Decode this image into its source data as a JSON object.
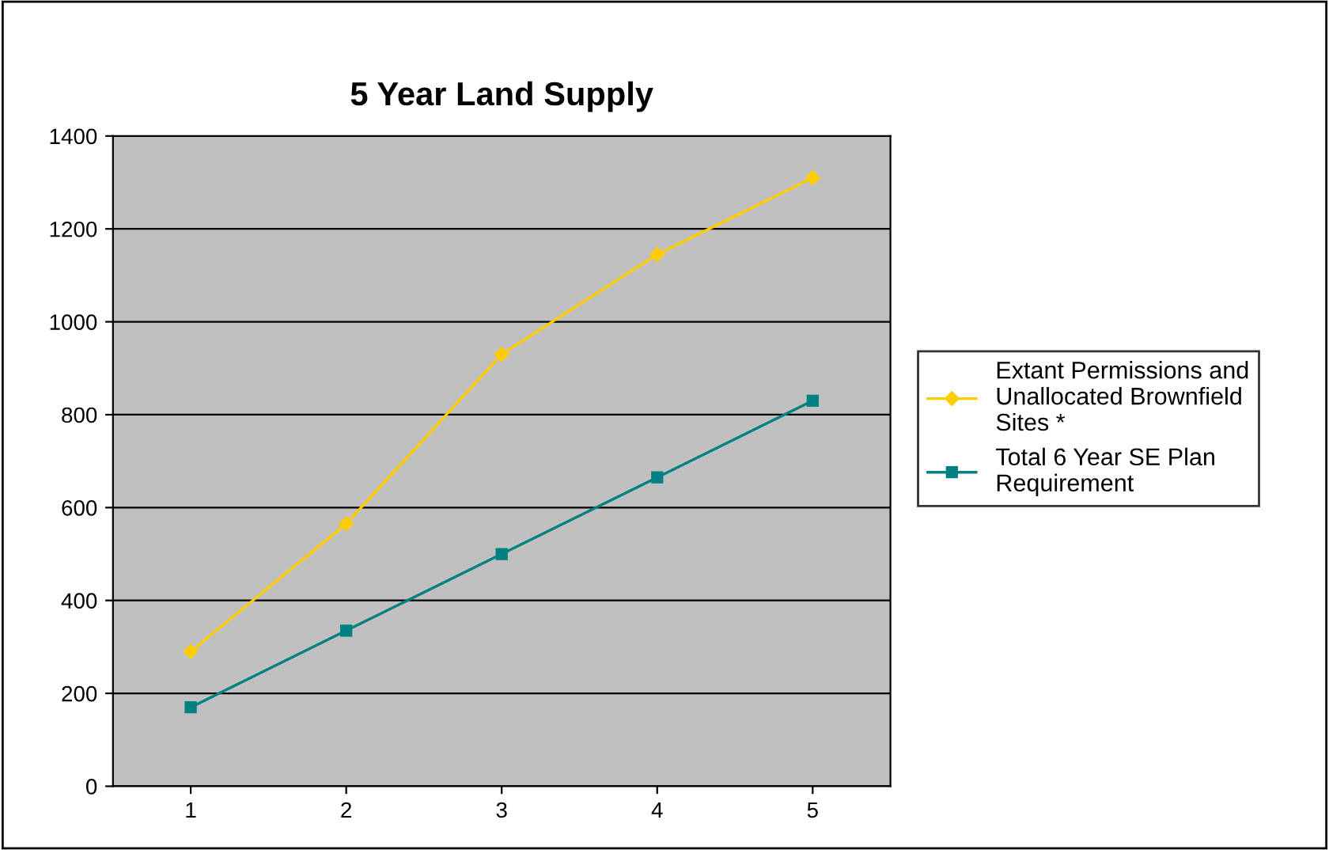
{
  "chart_data": {
    "type": "line",
    "title": "5 Year Land Supply",
    "categories": [
      "1",
      "2",
      "3",
      "4",
      "5"
    ],
    "series": [
      {
        "name": "Extant Permissions and Unallocated Brownfield Sites *",
        "color": "#ffcc00",
        "marker": "diamond",
        "values": [
          290,
          565,
          930,
          1145,
          1310
        ]
      },
      {
        "name": "Total 6 Year SE Plan Requirement",
        "color": "#008080",
        "marker": "square",
        "values": [
          170,
          335,
          500,
          665,
          830
        ]
      }
    ],
    "ylim": [
      0,
      1400
    ],
    "yticks": [
      0,
      200,
      400,
      600,
      800,
      1000,
      1200,
      1400
    ],
    "grid": "y",
    "legend": "right",
    "line_style": "solid"
  }
}
